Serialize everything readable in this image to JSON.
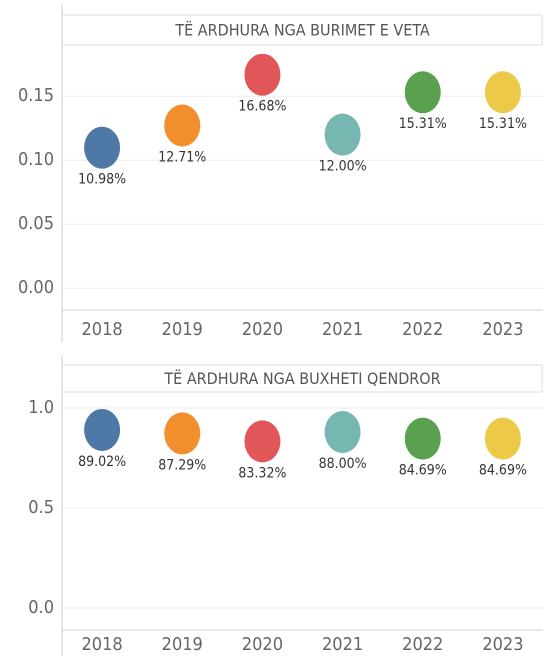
{
  "chart_data": [
    {
      "type": "dot",
      "title": "TË ARDHURA NGA BURIMET E VETA",
      "categories": [
        "2018",
        "2019",
        "2020",
        "2021",
        "2022",
        "2023"
      ],
      "values": [
        0.1098,
        0.1271,
        0.1668,
        0.12,
        0.1531,
        0.1531
      ],
      "value_labels": [
        "10.98%",
        "12.71%",
        "16.68%",
        "12.00%",
        "15.31%",
        "15.31%"
      ],
      "colors": [
        "#4e79a7",
        "#f28e2b",
        "#e15759",
        "#76b7b2",
        "#59a14f",
        "#edc948"
      ],
      "ylim": [
        -0.017,
        0.19
      ],
      "yticks": [
        {
          "value": 0,
          "label": "0.00"
        },
        {
          "value": 0.05,
          "label": "0.05"
        },
        {
          "value": 0.1,
          "label": "0.10"
        },
        {
          "value": 0.15,
          "label": "0.15"
        }
      ],
      "grid": true
    },
    {
      "type": "dot",
      "title": "TË ARDHURA NGA BUXHETI QENDROR",
      "categories": [
        "2018",
        "2019",
        "2020",
        "2021",
        "2022",
        "2023"
      ],
      "values": [
        0.8902,
        0.8729,
        0.8332,
        0.88,
        0.8469,
        0.8469
      ],
      "value_labels": [
        "89.02%",
        "87.29%",
        "83.32%",
        "88.00%",
        "84.69%",
        "84.69%"
      ],
      "colors": [
        "#4e79a7",
        "#f28e2b",
        "#e15759",
        "#76b7b2",
        "#59a14f",
        "#edc948"
      ],
      "ylim": [
        -0.11,
        1.08
      ],
      "yticks": [
        {
          "value": 0,
          "label": "0.0"
        },
        {
          "value": 0.5,
          "label": "0.5"
        },
        {
          "value": 1,
          "label": "1.0"
        }
      ],
      "grid": true
    }
  ]
}
